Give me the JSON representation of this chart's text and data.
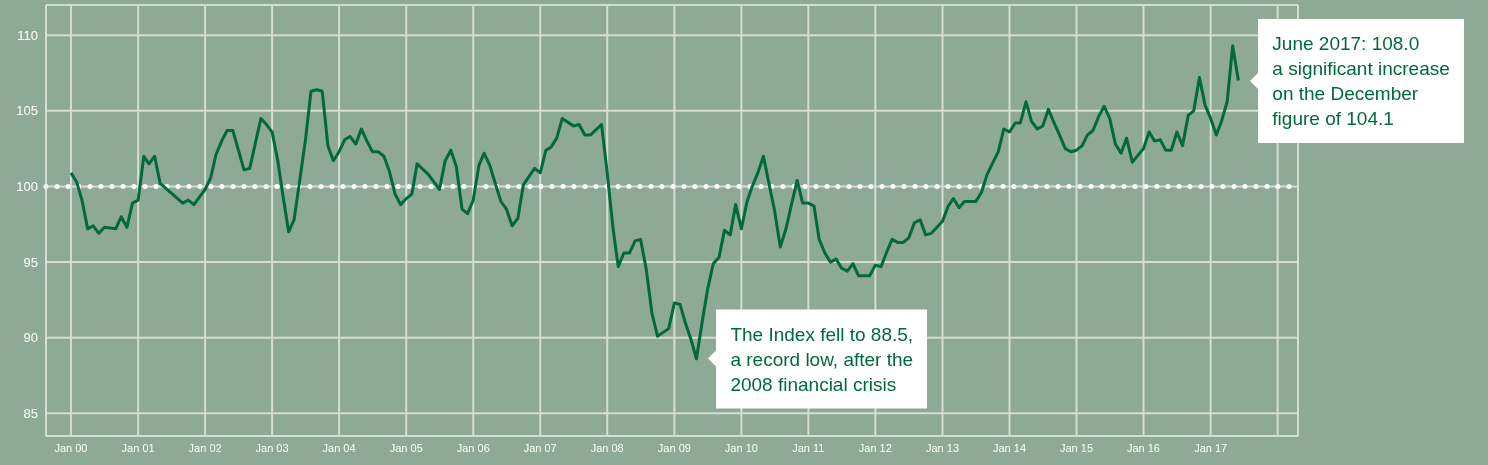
{
  "chart_data": {
    "type": "line",
    "x": [
      "2000-01",
      "2000-02",
      "2000-03",
      "2000-04",
      "2000-05",
      "2000-06",
      "2000-07",
      "2000-09",
      "2000-10",
      "2000-11",
      "2000-12",
      "2001-01",
      "2001-02",
      "2001-03",
      "2001-04",
      "2001-05",
      "2001-09",
      "2001-10",
      "2001-11",
      "2001-12",
      "2002-01",
      "2002-02",
      "2002-03",
      "2002-04",
      "2002-05",
      "2002-06",
      "2002-08",
      "2002-09",
      "2002-11",
      "2002-12",
      "2003-01",
      "2003-02",
      "2003-03",
      "2003-04",
      "2003-05",
      "2003-07",
      "2003-08",
      "2003-09",
      "2003-10",
      "2003-11",
      "2003-12",
      "2004-01",
      "2004-02",
      "2004-03",
      "2004-04",
      "2004-05",
      "2004-06",
      "2004-07",
      "2004-08",
      "2004-09",
      "2004-10",
      "2004-11",
      "2004-12",
      "2005-01",
      "2005-02",
      "2005-03",
      "2005-05",
      "2005-07",
      "2005-08",
      "2005-09",
      "2005-10",
      "2005-11",
      "2005-12",
      "2006-01",
      "2006-02",
      "2006-03",
      "2006-04",
      "2006-05",
      "2006-06",
      "2006-07",
      "2006-08",
      "2006-09",
      "2006-10",
      "2006-12",
      "2007-01",
      "2007-02",
      "2007-03",
      "2007-04",
      "2007-05",
      "2007-07",
      "2007-08",
      "2007-09",
      "2007-10",
      "2007-12",
      "2008-01",
      "2008-02",
      "2008-03",
      "2008-04",
      "2008-05",
      "2008-06",
      "2008-07",
      "2008-08",
      "2008-09",
      "2008-10",
      "2008-12",
      "2009-01",
      "2009-02",
      "2009-03",
      "2009-04",
      "2009-05",
      "2009-06",
      "2009-07",
      "2009-08",
      "2009-09",
      "2009-10",
      "2009-11",
      "2009-12",
      "2010-01",
      "2010-02",
      "2010-03",
      "2010-04",
      "2010-05",
      "2010-07",
      "2010-08",
      "2010-09",
      "2010-10",
      "2010-11",
      "2010-12",
      "2011-01",
      "2011-02",
      "2011-03",
      "2011-04",
      "2011-05",
      "2011-06",
      "2011-07",
      "2011-08",
      "2011-09",
      "2011-10",
      "2011-12",
      "2012-01",
      "2012-02",
      "2012-03",
      "2012-04",
      "2012-05",
      "2012-06",
      "2012-07",
      "2012-08",
      "2012-09",
      "2012-10",
      "2012-11",
      "2013-01",
      "2013-02",
      "2013-03",
      "2013-04",
      "2013-05",
      "2013-07",
      "2013-08",
      "2013-09",
      "2013-11",
      "2013-12",
      "2014-01",
      "2014-02",
      "2014-03",
      "2014-04",
      "2014-05",
      "2014-06",
      "2014-07",
      "2014-08",
      "2014-09",
      "2014-10",
      "2014-11",
      "2014-12",
      "2015-01",
      "2015-02",
      "2015-03",
      "2015-04",
      "2015-05",
      "2015-06",
      "2015-07",
      "2015-08",
      "2015-09",
      "2015-10",
      "2015-11",
      "2016-01",
      "2016-02",
      "2016-03",
      "2016-04",
      "2016-05",
      "2016-06",
      "2016-07",
      "2016-08",
      "2016-09",
      "2016-10",
      "2016-11",
      "2016-12",
      "2017-01",
      "2017-02",
      "2017-03",
      "2017-04",
      "2017-05",
      "2017-06"
    ],
    "series": [
      {
        "color": "#006a3c",
        "values": [
          100.9,
          100.3,
          99.1,
          97.2,
          97.4,
          96.9,
          97.3,
          97.2,
          98.0,
          97.3,
          98.9,
          99.1,
          102.0,
          101.5,
          102.0,
          100.2,
          98.9,
          99.1,
          98.8,
          99.3,
          99.8,
          100.6,
          102.1,
          103.0,
          103.7,
          103.7,
          101.1,
          101.2,
          104.5,
          104.1,
          103.6,
          101.7,
          99.4,
          97.0,
          97.8,
          103.0,
          106.3,
          106.4,
          106.3,
          102.7,
          101.7,
          102.3,
          103.1,
          103.3,
          102.8,
          103.8,
          103.0,
          102.3,
          102.3,
          102.0,
          101.0,
          99.5,
          98.8,
          99.2,
          99.5,
          101.5,
          100.8,
          99.8,
          101.7,
          102.4,
          101.3,
          98.5,
          98.2,
          99.1,
          101.4,
          102.2,
          101.4,
          100.2,
          99.0,
          98.5,
          97.4,
          97.9,
          100.1,
          101.2,
          100.9,
          102.4,
          102.6,
          103.2,
          104.5,
          104.0,
          104.1,
          103.4,
          103.4,
          104.1,
          100.9,
          97.3,
          94.7,
          95.6,
          95.6,
          96.4,
          96.5,
          94.5,
          91.6,
          90.1,
          90.6,
          92.3,
          92.2,
          91.0,
          89.9,
          88.6,
          91.0,
          93.2,
          94.9,
          95.3,
          97.1,
          96.8,
          98.8,
          97.2,
          99.0,
          100.0,
          100.9,
          102.0,
          98.4,
          96.0,
          97.2,
          98.8,
          100.4,
          98.9,
          98.9,
          98.7,
          96.5,
          95.6,
          95.0,
          95.2,
          94.6,
          94.4,
          94.9,
          94.1,
          94.1,
          94.8,
          94.7,
          95.6,
          96.5,
          96.3,
          96.3,
          96.6,
          97.6,
          97.8,
          96.8,
          96.9,
          97.7,
          98.7,
          99.2,
          98.6,
          99.0,
          99.0,
          99.6,
          100.8,
          102.3,
          103.8,
          103.6,
          104.2,
          104.2,
          105.6,
          104.3,
          103.8,
          104.0,
          105.1,
          104.2,
          103.4,
          102.5,
          102.3,
          102.4,
          102.7,
          103.4,
          103.7,
          104.6,
          105.3,
          104.5,
          102.8,
          102.2,
          103.2,
          101.6,
          102.5,
          103.6,
          103.0,
          103.1,
          102.4,
          102.4,
          103.6,
          102.7,
          104.7,
          105.0,
          107.2,
          105.4,
          104.5,
          103.4,
          104.3,
          105.6,
          109.3,
          107.0
        ]
      }
    ],
    "xlim": [
      "1999-08-18",
      "2018-04-22"
    ],
    "xticks": [
      {
        "value": "2000-01",
        "label": "Jan 00"
      },
      {
        "value": "2001-01",
        "label": "Jan 01"
      },
      {
        "value": "2002-01",
        "label": "Jan 02"
      },
      {
        "value": "2003-01",
        "label": "Jan 03"
      },
      {
        "value": "2004-01",
        "label": "Jan 04"
      },
      {
        "value": "2005-01",
        "label": "Jan 05"
      },
      {
        "value": "2006-01",
        "label": "Jan 06"
      },
      {
        "value": "2007-01",
        "label": "Jan 07"
      },
      {
        "value": "2008-01",
        "label": "Jan 08"
      },
      {
        "value": "2009-01",
        "label": "Jan 09"
      },
      {
        "value": "2010-01",
        "label": "Jan 10"
      },
      {
        "value": "2011-01",
        "label": "Jan 11"
      },
      {
        "value": "2012-01",
        "label": "Jan 12"
      },
      {
        "value": "2013-01",
        "label": "Jan 13"
      },
      {
        "value": "2014-01",
        "label": "Jan 14"
      },
      {
        "value": "2015-01",
        "label": "Jan 15"
      },
      {
        "value": "2016-01",
        "label": "Jan 16"
      },
      {
        "value": "2017-01",
        "label": "Jan 17"
      },
      {
        "value": "2018-01",
        "label": null
      }
    ],
    "ylim": [
      83.5,
      112
    ],
    "yticks": [
      85,
      90,
      95,
      100,
      105,
      110
    ],
    "grid": true,
    "marker": "none",
    "ref_lines": [
      {
        "axis": "y",
        "value": 100,
        "color": "#ffffff",
        "line_style": "dotted"
      }
    ],
    "annotations": [
      {
        "text": "The Index fell to 88.5,\na record low, after the\n2008 financial crisis",
        "x": "2009-05",
        "y": 88.6
      },
      {
        "text": "June 2017: 108.0\na significant increase\non the December\nfigure of 104.1",
        "x": "2017-06",
        "y": 107.0
      }
    ]
  }
}
